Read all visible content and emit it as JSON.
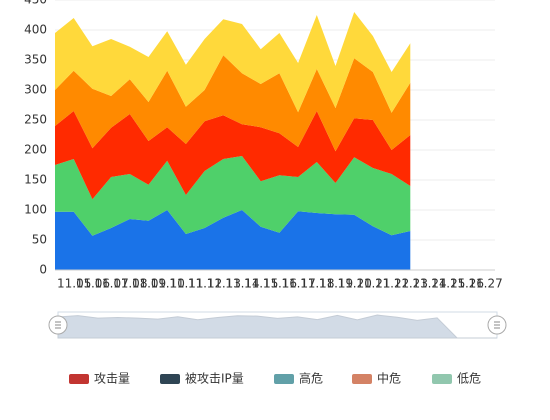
{
  "chart_data": {
    "type": "stacked_area",
    "categories": [
      "11.05",
      "11.06",
      "11.07",
      "11.08",
      "11.09",
      "11.10",
      "11.11",
      "11.12",
      "11.13",
      "11.14",
      "11.15",
      "11.16",
      "11.17",
      "11.18",
      "11.19",
      "11.20",
      "11.21",
      "11.22",
      "11.23",
      "11.24",
      "11.25",
      "11.26",
      "11.27"
    ],
    "series": [
      {
        "name": "攻击量",
        "color": "#1a73e8",
        "legend_color": "#c23531",
        "values": [
          97,
          97,
          57,
          70,
          85,
          82,
          100,
          60,
          70,
          87,
          100,
          72,
          62,
          98,
          95,
          93,
          92,
          73,
          58,
          65,
          null,
          null,
          null
        ]
      },
      {
        "name": "被攻击IP量",
        "color": "#4fd06a",
        "legend_color": "#2f4554",
        "values": [
          78,
          88,
          61,
          85,
          75,
          60,
          82,
          65,
          95,
          98,
          90,
          76,
          96,
          57,
          85,
          52,
          96,
          97,
          102,
          75,
          null,
          null,
          null
        ]
      },
      {
        "name": "高危",
        "color": "#ff2a00",
        "legend_color": "#61a0a8",
        "values": [
          65,
          80,
          85,
          82,
          100,
          73,
          56,
          85,
          83,
          73,
          53,
          90,
          70,
          50,
          85,
          53,
          65,
          80,
          40,
          85,
          null,
          null,
          null
        ]
      },
      {
        "name": "中危",
        "color": "#ff8a00",
        "legend_color": "#d48265",
        "values": [
          60,
          67,
          99,
          53,
          58,
          65,
          94,
          62,
          52,
          100,
          85,
          72,
          100,
          58,
          70,
          72,
          100,
          80,
          62,
          87,
          null,
          null,
          null
        ]
      },
      {
        "name": "低危",
        "color": "#ffd93b",
        "legend_color": "#91c7ae",
        "values": [
          95,
          88,
          71,
          95,
          54,
          75,
          66,
          70,
          85,
          60,
          82,
          58,
          67,
          82,
          90,
          70,
          77,
          60,
          68,
          66,
          null,
          null,
          null
        ]
      }
    ],
    "ylim": [
      0,
      450
    ],
    "yticks": [
      0,
      50,
      100,
      150,
      200,
      250,
      300,
      350,
      400,
      450
    ],
    "grid": true,
    "legend": "bottom"
  }
}
